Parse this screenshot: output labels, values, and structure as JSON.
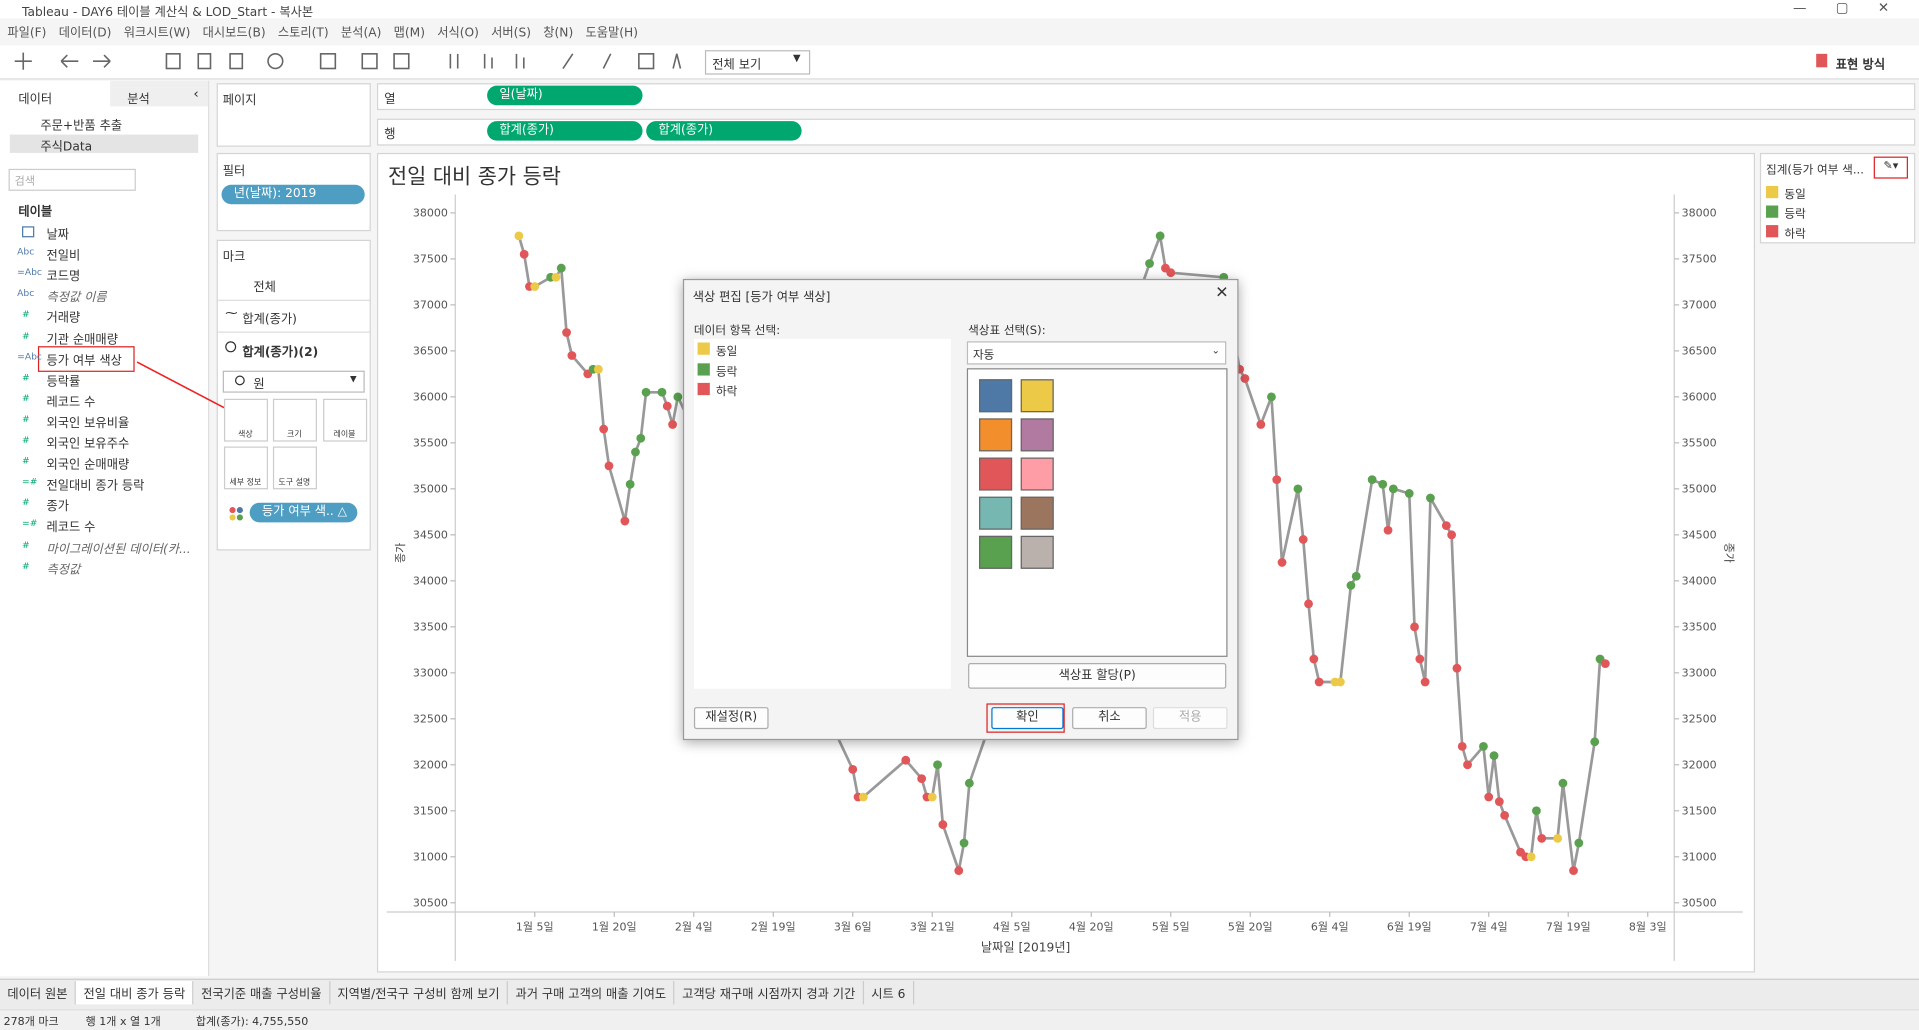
{
  "window": {
    "title": "Tableau - DAY6 테이블 계산식 & LOD_Start - 복사본",
    "menu": [
      "파일(F)",
      "데이터(D)",
      "워크시트(W)",
      "대시보드(B)",
      "스토리(T)",
      "분석(A)",
      "맵(M)",
      "서식(O)",
      "서버(S)",
      "창(N)",
      "도움말(H)"
    ],
    "toolbar": {
      "fit": "전체 보기",
      "show_me": "표현 방식"
    }
  },
  "left_panel": {
    "tabs": [
      "데이터",
      "분석"
    ],
    "sources": [
      "주문+반품 추출",
      "주식Data"
    ],
    "search": "검색",
    "tables_header": "테이블",
    "fields": [
      {
        "icon": "",
        "name": "날짜"
      },
      {
        "icon": "Abc",
        "name": "전일비"
      },
      {
        "icon": "=Abc",
        "name": "코드명"
      },
      {
        "icon": "Abc",
        "name": "측정값 이름"
      },
      {
        "icon": "#",
        "name": "거래량"
      },
      {
        "icon": "#",
        "name": "기관 순매매량"
      },
      {
        "icon": "=Abc",
        "name": "등가 여부 색상"
      },
      {
        "icon": "#",
        "name": "등락률"
      },
      {
        "icon": "#",
        "name": "레코드 수"
      },
      {
        "icon": "#",
        "name": "외국인 보유비율"
      },
      {
        "icon": "#",
        "name": "외국인 보유주수"
      },
      {
        "icon": "#",
        "name": "외국인 순매매량"
      },
      {
        "icon": "=#",
        "name": "전일대비 종가 등락"
      },
      {
        "icon": "#",
        "name": "종가"
      },
      {
        "icon": "=#",
        "name": "레코드 수"
      },
      {
        "icon": "#",
        "name": "마이그레이션된 데이터(카..."
      },
      {
        "icon": "#",
        "name": "측정값"
      }
    ]
  },
  "cards": {
    "pages": "페이지",
    "filters": "필터",
    "filter_pill": "년(날짜): 2019",
    "marks": "마크",
    "marks_all": "전체",
    "marks_line": "합계(종가)",
    "marks_circle": "합계(종가)(2)",
    "mark_type": "원",
    "mark_buttons": [
      "색상",
      "크기",
      "레이블",
      "세부 정보",
      "도구 설명"
    ],
    "color_pill": "등가 여부 색.. △"
  },
  "shelves": {
    "columns": "열",
    "columns_pills": [
      "일(날짜)"
    ],
    "rows": "행",
    "rows_pills": [
      "합계(종가)",
      "합계(종가)"
    ]
  },
  "chart_data": {
    "type": "line",
    "title": "전일 대비 종가 등락",
    "x_label": "날짜일 [2019년]",
    "y_label": "종가",
    "line_color": "#999999",
    "xlim": [
      -10,
      220
    ],
    "xticks": [
      {
        "value": 5,
        "label": "1월 5일"
      },
      {
        "value": 20,
        "label": "1월 20일"
      },
      {
        "value": 35,
        "label": "2월 4일"
      },
      {
        "value": 50,
        "label": "2월 19일"
      },
      {
        "value": 65,
        "label": "3월 6일"
      },
      {
        "value": 80,
        "label": "3월 21일"
      },
      {
        "value": 95,
        "label": "4월 5일"
      },
      {
        "value": 110,
        "label": "4월 20일"
      },
      {
        "value": 125,
        "label": "5월 5일"
      },
      {
        "value": 140,
        "label": "5월 20일"
      },
      {
        "value": 155,
        "label": "6월 4일"
      },
      {
        "value": 170,
        "label": "6월 19일"
      },
      {
        "value": 185,
        "label": "7월 4일"
      },
      {
        "value": 200,
        "label": "7월 19일"
      },
      {
        "value": 215,
        "label": "8월 3일"
      }
    ],
    "ylim": [
      30400,
      38200
    ],
    "yticks": [
      30500,
      31000,
      31500,
      32000,
      32500,
      33000,
      33500,
      34000,
      34500,
      35000,
      35500,
      36000,
      36500,
      37000,
      37500,
      38000
    ],
    "dual_axis": true,
    "x": [
      2,
      3,
      4,
      5,
      8,
      9,
      10,
      11,
      12,
      15,
      16,
      17,
      18,
      19,
      22,
      23,
      24,
      25,
      26,
      29,
      30,
      31,
      32,
      65,
      66,
      67,
      75,
      78,
      79,
      80,
      81,
      82,
      85,
      86,
      87,
      121,
      123,
      124,
      125,
      135,
      138,
      139,
      142,
      144,
      145,
      146,
      149,
      150,
      151,
      152,
      153,
      156,
      157,
      159,
      160,
      163,
      165,
      166,
      167,
      170,
      171,
      172,
      173,
      174,
      177,
      178,
      179,
      180,
      181,
      184,
      185,
      186,
      187,
      188,
      191,
      192,
      193,
      194,
      195,
      198,
      199,
      201,
      202,
      205,
      206,
      207
    ],
    "series": [
      {
        "name": "합계(종가)",
        "values": [
          37750,
          37550,
          37200,
          37200,
          37300,
          37300,
          37400,
          36700,
          36450,
          36250,
          36300,
          36300,
          35650,
          35250,
          34650,
          35050,
          35400,
          35550,
          36050,
          36050,
          35900,
          35700,
          36000,
          31950,
          31650,
          31650,
          32050,
          31850,
          31650,
          31650,
          32000,
          31350,
          30850,
          31150,
          31800,
          37450,
          37750,
          37400,
          37350,
          37300,
          36300,
          36200,
          35700,
          36000,
          35100,
          34200,
          35000,
          34450,
          33750,
          33150,
          32900,
          32900,
          32900,
          33950,
          34050,
          35100,
          35050,
          34550,
          35000,
          34950,
          33500,
          33150,
          32900,
          34900,
          34600,
          34500,
          33050,
          32200,
          32000,
          32200,
          31650,
          32100,
          31600,
          31450,
          31050,
          31000,
          31000,
          31500,
          31200,
          31200,
          31800,
          30850,
          31150,
          32250,
          33150,
          33100
        ],
        "point_legend": [
          "동일",
          "하락",
          "하락",
          "동일",
          "등락",
          "동일",
          "등락",
          "하락",
          "하락",
          "하락",
          "등락",
          "동일",
          "하락",
          "하락",
          "하락",
          "등락",
          "등락",
          "등락",
          "등락",
          "등락",
          "하락",
          "하락",
          "등락",
          "하락",
          "하락",
          "동일",
          "하락",
          "하락",
          "하락",
          "동일",
          "등락",
          "하락",
          "하락",
          "등락",
          "등락",
          "등락",
          "등락",
          "하락",
          "하락",
          "등락",
          "하락",
          "하락",
          "하락",
          "등락",
          "하락",
          "하락",
          "등락",
          "하락",
          "하락",
          "하락",
          "하락",
          "동일",
          "동일",
          "등락",
          "등락",
          "등락",
          "등락",
          "하락",
          "등락",
          "등락",
          "하락",
          "하락",
          "하락",
          "등락",
          "하락",
          "하락",
          "하락",
          "하락",
          "하락",
          "등락",
          "하락",
          "등락",
          "하락",
          "하락",
          "하락",
          "하락",
          "동일",
          "등락",
          "하락",
          "동일",
          "등락",
          "하락",
          "등락",
          "등락",
          "등락",
          "하락"
        ]
      }
    ],
    "legend": {
      "title": "집계(등가 여부 색...",
      "items": [
        {
          "name": "동일",
          "color": "#edc948"
        },
        {
          "name": "등락",
          "color": "#59a14f"
        },
        {
          "name": "하락",
          "color": "#e15759"
        }
      ]
    }
  },
  "dialog": {
    "title": "색상 편집 [등가 여부 색상]",
    "items_label": "데이터 항목 선택:",
    "items": [
      "동일",
      "등락",
      "하락"
    ],
    "palette_label": "색상표 선택(S):",
    "palette": "자동",
    "palette_colors": [
      "#4e79a7",
      "#edc948",
      "#f28e2b",
      "#b07aa1",
      "#e15759",
      "#ff9da7",
      "#76b7b2",
      "#9c755f",
      "#59a14f",
      "#bab0ac"
    ],
    "assign": "색상표 할당(P)",
    "reset": "재설정(R)",
    "ok": "확인",
    "cancel": "취소",
    "apply": "적용"
  },
  "sheet_tabs": [
    "데이터 원본",
    "전일 대비 종가 등락",
    "전국기준 매출 구성비율",
    "지역별/전국구 구성비 함께 보기",
    "과거 구매 고객의 매출 기여도",
    "고객당 재구매 시점까지 경과 기간",
    "시트 6"
  ],
  "status": {
    "marks": "278개 마크",
    "grid": "행 1개 x 열 1개",
    "sum": "합계(종가): 4,755,550"
  }
}
